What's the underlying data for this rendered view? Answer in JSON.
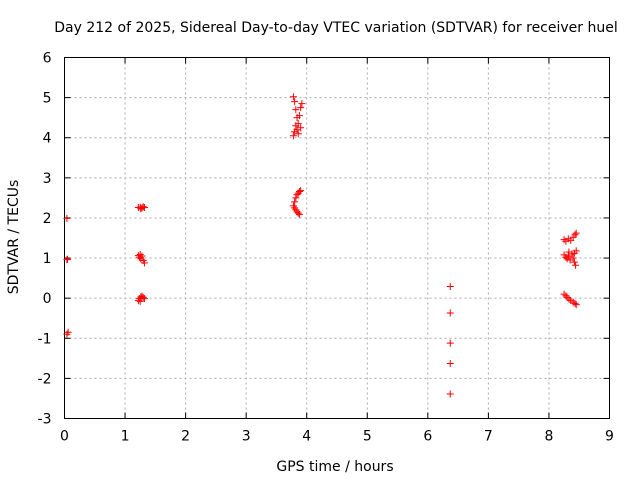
{
  "chart_data": {
    "type": "scatter",
    "title": "Day 212 of 2025, Sidereal Day-to-day VTEC variation (SDTVAR) for receiver huel",
    "xlabel": "GPS time / hours",
    "ylabel": "SDTVAR / TECUs",
    "xlim": [
      0,
      9
    ],
    "ylim": [
      -3,
      6
    ],
    "xticks": [
      0,
      1,
      2,
      3,
      4,
      5,
      6,
      7,
      8,
      9
    ],
    "yticks": [
      -3,
      -2,
      -1,
      0,
      1,
      2,
      3,
      4,
      5,
      6
    ],
    "grid": true,
    "legend": "none",
    "marker": "+",
    "colors": {
      "series": "#ff0000",
      "grid": "#aaaaaa",
      "axis": "#000000"
    },
    "series": [
      {
        "name": "SDTVAR",
        "points": [
          [
            0.04,
            1.99
          ],
          [
            0.05,
            0.97
          ],
          [
            0.04,
            0.96
          ],
          [
            0.06,
            -0.85
          ],
          [
            0.04,
            -0.9
          ],
          [
            1.22,
            2.26
          ],
          [
            1.25,
            2.27
          ],
          [
            1.28,
            2.25
          ],
          [
            1.3,
            2.28
          ],
          [
            1.32,
            2.26
          ],
          [
            1.26,
            2.23
          ],
          [
            1.22,
            1.06
          ],
          [
            1.24,
            1.02
          ],
          [
            1.26,
            0.98
          ],
          [
            1.28,
            1.05
          ],
          [
            1.3,
            0.94
          ],
          [
            1.32,
            0.88
          ],
          [
            1.25,
            1.09
          ],
          [
            1.22,
            -0.06
          ],
          [
            1.24,
            -0.01
          ],
          [
            1.26,
            0.03
          ],
          [
            1.28,
            0.05
          ],
          [
            1.3,
            0.02
          ],
          [
            1.32,
            -0.01
          ],
          [
            1.25,
            -0.08
          ],
          [
            3.78,
            5.02
          ],
          [
            3.8,
            4.9
          ],
          [
            3.82,
            4.7
          ],
          [
            3.84,
            4.5
          ],
          [
            3.82,
            4.3
          ],
          [
            3.8,
            4.15
          ],
          [
            3.78,
            4.05
          ],
          [
            3.84,
            4.2
          ],
          [
            3.86,
            4.35
          ],
          [
            3.88,
            4.55
          ],
          [
            3.9,
            4.75
          ],
          [
            3.92,
            4.85
          ],
          [
            3.9,
            4.25
          ],
          [
            3.86,
            4.1
          ],
          [
            3.78,
            2.3
          ],
          [
            3.8,
            2.4
          ],
          [
            3.82,
            2.5
          ],
          [
            3.84,
            2.58
          ],
          [
            3.86,
            2.62
          ],
          [
            3.88,
            2.66
          ],
          [
            3.9,
            2.68
          ],
          [
            3.82,
            2.2
          ],
          [
            3.84,
            2.15
          ],
          [
            3.86,
            2.12
          ],
          [
            3.88,
            2.09
          ],
          [
            3.8,
            2.25
          ],
          [
            6.37,
            0.29
          ],
          [
            6.37,
            -0.37
          ],
          [
            6.37,
            -1.12
          ],
          [
            6.37,
            -1.63
          ],
          [
            6.37,
            -2.39
          ],
          [
            8.25,
            1.46
          ],
          [
            8.28,
            1.42
          ],
          [
            8.32,
            1.48
          ],
          [
            8.36,
            1.44
          ],
          [
            8.4,
            1.52
          ],
          [
            8.43,
            1.58
          ],
          [
            8.45,
            1.62
          ],
          [
            8.25,
            1.08
          ],
          [
            8.28,
            1.02
          ],
          [
            8.3,
            0.98
          ],
          [
            8.32,
            1.05
          ],
          [
            8.35,
            0.95
          ],
          [
            8.38,
            1.1
          ],
          [
            8.4,
            1.0
          ],
          [
            8.42,
            0.9
          ],
          [
            8.44,
            0.82
          ],
          [
            8.33,
            1.15
          ],
          [
            8.42,
            1.12
          ],
          [
            8.45,
            1.18
          ],
          [
            8.25,
            0.1
          ],
          [
            8.28,
            0.06
          ],
          [
            8.3,
            0.02
          ],
          [
            8.33,
            -0.02
          ],
          [
            8.36,
            -0.06
          ],
          [
            8.4,
            -0.1
          ],
          [
            8.43,
            -0.13
          ],
          [
            8.45,
            -0.16
          ]
        ]
      }
    ]
  }
}
